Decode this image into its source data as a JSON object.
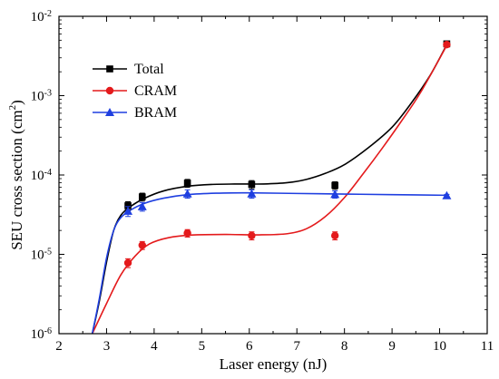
{
  "chart_data": {
    "type": "scatter",
    "xlabel": "Laser energy (nJ)",
    "ylabel_main": "SEU cross section (cm",
    "ylabel_sup": "2",
    "ylabel_end": ")",
    "xlim": [
      2,
      11
    ],
    "ylim": [
      1e-06,
      0.01
    ],
    "yscale": "log",
    "x_ticks": [
      2,
      3,
      4,
      5,
      6,
      7,
      8,
      9,
      10,
      11
    ],
    "y_ticks": [
      {
        "value": 1e-06,
        "base": "10",
        "exp": "-6"
      },
      {
        "value": 1e-05,
        "base": "10",
        "exp": "-5"
      },
      {
        "value": 0.0001,
        "base": "10",
        "exp": "-4"
      },
      {
        "value": 0.001,
        "base": "10",
        "exp": "-3"
      },
      {
        "value": 0.01,
        "base": "10",
        "exp": "-2"
      }
    ],
    "legend_placement": "top-left",
    "series": [
      {
        "name": "Total",
        "color": "#000000",
        "marker": "square",
        "points": [
          {
            "x": 3.45,
            "y": 4.1e-05,
            "err": 5e-06
          },
          {
            "x": 3.75,
            "y": 5.3e-05,
            "err": 6e-06
          },
          {
            "x": 4.7,
            "y": 7.9e-05,
            "err": 9e-06
          },
          {
            "x": 6.05,
            "y": 7.6e-05,
            "err": 9e-06
          },
          {
            "x": 7.8,
            "y": 7.4e-05,
            "err": 8e-06
          },
          {
            "x": 10.15,
            "y": 0.0045,
            "err": 0.0003
          }
        ],
        "curve": [
          [
            2.7,
            1e-06
          ],
          [
            2.85,
            2.6e-06
          ],
          [
            3.0,
            8e-06
          ],
          [
            3.15,
            2e-05
          ],
          [
            3.3,
            3.1e-05
          ],
          [
            3.5,
            4e-05
          ],
          [
            3.8,
            5.1e-05
          ],
          [
            4.2,
            6.3e-05
          ],
          [
            4.7,
            7.2e-05
          ],
          [
            5.2,
            7.6e-05
          ],
          [
            5.8,
            7.7e-05
          ],
          [
            6.3,
            7.7e-05
          ],
          [
            6.8,
            8e-05
          ],
          [
            7.2,
            8.8e-05
          ],
          [
            7.6,
            0.000105
          ],
          [
            8.0,
            0.000135
          ],
          [
            8.5,
            0.00022
          ],
          [
            9.0,
            0.0004
          ],
          [
            9.4,
            0.0008
          ],
          [
            9.8,
            0.0018
          ],
          [
            10.15,
            0.0044
          ]
        ]
      },
      {
        "name": "CRAM",
        "color": "#e41a1c",
        "marker": "circle",
        "points": [
          {
            "x": 3.45,
            "y": 7.8e-06,
            "err": 1e-06
          },
          {
            "x": 3.75,
            "y": 1.3e-05,
            "err": 1.5e-06
          },
          {
            "x": 4.7,
            "y": 1.85e-05,
            "err": 2e-06
          },
          {
            "x": 6.05,
            "y": 1.72e-05,
            "err": 2e-06
          },
          {
            "x": 7.8,
            "y": 1.72e-05,
            "err": 2e-06
          },
          {
            "x": 10.15,
            "y": 0.0044,
            "err": 0.0003
          }
        ],
        "curve": [
          [
            2.7,
            1e-06
          ],
          [
            3.0,
            2.4e-06
          ],
          [
            3.3,
            5.5e-06
          ],
          [
            3.6,
            9.5e-06
          ],
          [
            3.9,
            1.35e-05
          ],
          [
            4.3,
            1.62e-05
          ],
          [
            4.8,
            1.75e-05
          ],
          [
            5.5,
            1.78e-05
          ],
          [
            6.2,
            1.76e-05
          ],
          [
            6.8,
            1.82e-05
          ],
          [
            7.2,
            2.1e-05
          ],
          [
            7.6,
            3e-05
          ],
          [
            8.0,
            5.2e-05
          ],
          [
            8.4,
            0.000105
          ],
          [
            8.8,
            0.00022
          ],
          [
            9.2,
            0.00048
          ],
          [
            9.6,
            0.0011
          ],
          [
            10.15,
            0.0043
          ]
        ]
      },
      {
        "name": "BRAM",
        "color": "#1f3fe0",
        "marker": "triangle",
        "points": [
          {
            "x": 3.45,
            "y": 3.5e-05,
            "err": 5e-06
          },
          {
            "x": 3.75,
            "y": 4e-05,
            "err": 5e-06
          },
          {
            "x": 4.7,
            "y": 5.8e-05,
            "err": 7e-06
          },
          {
            "x": 6.05,
            "y": 5.8e-05,
            "err": 7e-06
          },
          {
            "x": 7.8,
            "y": 5.7e-05,
            "err": 6e-06
          },
          {
            "x": 10.15,
            "y": 5.5e-05,
            "err": 2e-06
          }
        ],
        "curve": [
          [
            2.7,
            1e-06
          ],
          [
            2.85,
            2.8e-06
          ],
          [
            3.0,
            9e-06
          ],
          [
            3.15,
            2e-05
          ],
          [
            3.3,
            2.9e-05
          ],
          [
            3.5,
            3.6e-05
          ],
          [
            3.8,
            4.4e-05
          ],
          [
            4.2,
            5.1e-05
          ],
          [
            4.7,
            5.65e-05
          ],
          [
            5.3,
            5.9e-05
          ],
          [
            6.0,
            5.95e-05
          ],
          [
            7.0,
            5.85e-05
          ],
          [
            8.0,
            5.75e-05
          ],
          [
            9.0,
            5.65e-05
          ],
          [
            10.15,
            5.55e-05
          ]
        ]
      }
    ]
  }
}
